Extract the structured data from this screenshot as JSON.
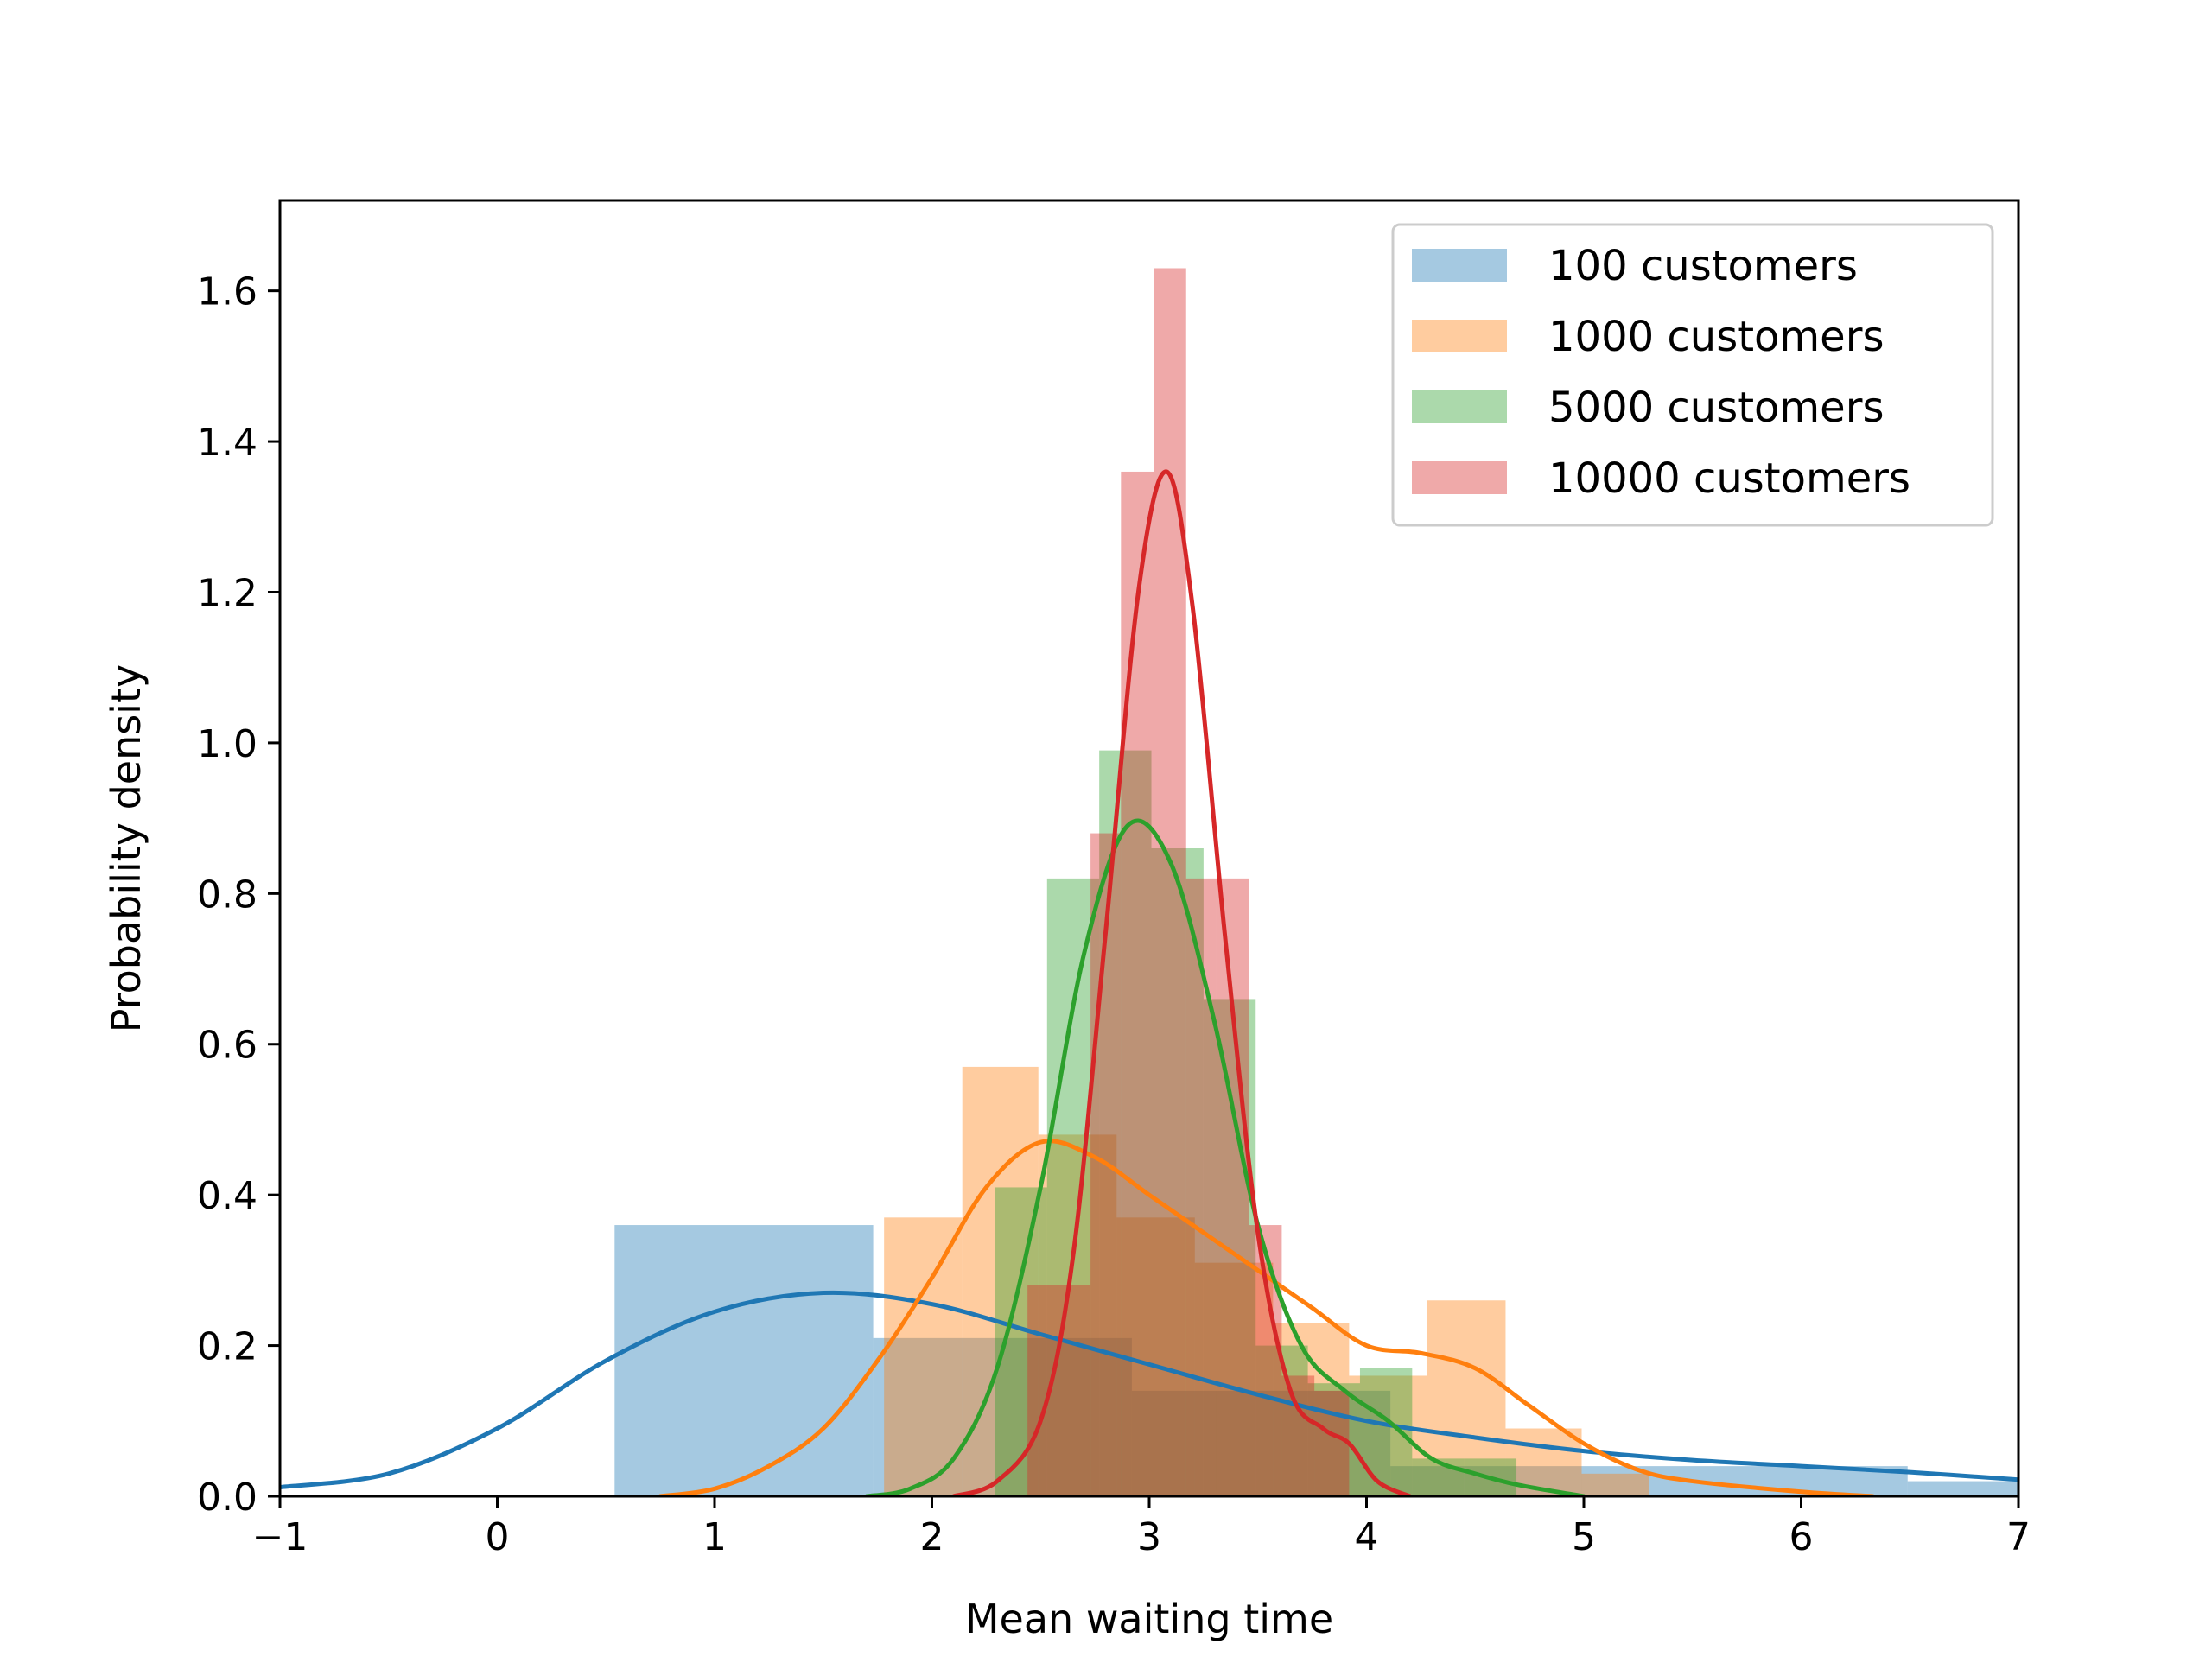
{
  "chart_data": {
    "type": "histogram_kde",
    "title": "",
    "xlabel": "Mean waiting time",
    "ylabel": "Probability density",
    "xlim": [
      -1,
      7
    ],
    "ylim": [
      0,
      1.72
    ],
    "x_ticks": [
      -1,
      0,
      1,
      2,
      3,
      4,
      5,
      6,
      7
    ],
    "y_ticks": [
      0.0,
      0.2,
      0.4,
      0.6,
      0.8,
      1.0,
      1.2,
      1.4,
      1.6
    ],
    "x_tick_labels": [
      "−1",
      "0",
      "1",
      "2",
      "3",
      "4",
      "5",
      "6",
      "7"
    ],
    "y_tick_labels": [
      "0.0",
      "0.2",
      "0.4",
      "0.6",
      "0.8",
      "1.0",
      "1.2",
      "1.4",
      "1.6"
    ],
    "legend_position": "top-right",
    "grid": false,
    "series": [
      {
        "name": "100 customers",
        "color": "#1f77b4",
        "bins": [
          {
            "x0": 0.54,
            "x1": 1.73,
            "h": 0.36
          },
          {
            "x0": 1.73,
            "x1": 2.92,
            "h": 0.21
          },
          {
            "x0": 2.92,
            "x1": 4.11,
            "h": 0.14
          },
          {
            "x0": 4.11,
            "x1": 5.3,
            "h": 0.04
          },
          {
            "x0": 5.3,
            "x1": 6.49,
            "h": 0.04
          },
          {
            "x0": 6.49,
            "x1": 7.68,
            "h": 0.02
          }
        ],
        "kde": [
          [
            -1.0,
            0.012
          ],
          [
            -0.5,
            0.03
          ],
          [
            0.0,
            0.09
          ],
          [
            0.5,
            0.18
          ],
          [
            1.0,
            0.245
          ],
          [
            1.5,
            0.27
          ],
          [
            2.0,
            0.255
          ],
          [
            2.5,
            0.215
          ],
          [
            3.0,
            0.175
          ],
          [
            3.5,
            0.135
          ],
          [
            4.0,
            0.1
          ],
          [
            4.5,
            0.078
          ],
          [
            5.0,
            0.06
          ],
          [
            5.5,
            0.048
          ],
          [
            6.0,
            0.04
          ],
          [
            6.5,
            0.032
          ],
          [
            7.0,
            0.022
          ]
        ]
      },
      {
        "name": "1000 customers",
        "color": "#ff7f0e",
        "bins": [
          {
            "x0": 1.78,
            "x1": 2.14,
            "h": 0.37
          },
          {
            "x0": 2.14,
            "x1": 2.49,
            "h": 0.57
          },
          {
            "x0": 2.49,
            "x1": 2.85,
            "h": 0.48
          },
          {
            "x0": 2.85,
            "x1": 3.21,
            "h": 0.37
          },
          {
            "x0": 3.21,
            "x1": 3.57,
            "h": 0.31
          },
          {
            "x0": 3.57,
            "x1": 3.92,
            "h": 0.23
          },
          {
            "x0": 3.92,
            "x1": 4.28,
            "h": 0.16
          },
          {
            "x0": 4.28,
            "x1": 4.64,
            "h": 0.26
          },
          {
            "x0": 4.64,
            "x1": 4.99,
            "h": 0.09
          },
          {
            "x0": 4.99,
            "x1": 5.3,
            "h": 0.03
          }
        ],
        "kde": [
          [
            0.75,
            0.0
          ],
          [
            1.0,
            0.01
          ],
          [
            1.25,
            0.04
          ],
          [
            1.5,
            0.09
          ],
          [
            1.75,
            0.18
          ],
          [
            2.0,
            0.29
          ],
          [
            2.25,
            0.41
          ],
          [
            2.5,
            0.47
          ],
          [
            2.75,
            0.45
          ],
          [
            3.0,
            0.4
          ],
          [
            3.25,
            0.35
          ],
          [
            3.5,
            0.3
          ],
          [
            3.75,
            0.25
          ],
          [
            4.0,
            0.2
          ],
          [
            4.25,
            0.19
          ],
          [
            4.5,
            0.17
          ],
          [
            4.75,
            0.12
          ],
          [
            5.0,
            0.07
          ],
          [
            5.25,
            0.035
          ],
          [
            5.5,
            0.02
          ],
          [
            6.0,
            0.006
          ],
          [
            6.33,
            0.0
          ]
        ]
      },
      {
        "name": "5000 customers",
        "color": "#2ca02c",
        "bins": [
          {
            "x0": 2.29,
            "x1": 2.53,
            "h": 0.41
          },
          {
            "x0": 2.53,
            "x1": 2.77,
            "h": 0.82
          },
          {
            "x0": 2.77,
            "x1": 3.01,
            "h": 0.99
          },
          {
            "x0": 3.01,
            "x1": 3.25,
            "h": 0.86
          },
          {
            "x0": 3.25,
            "x1": 3.49,
            "h": 0.66
          },
          {
            "x0": 3.49,
            "x1": 3.73,
            "h": 0.2
          },
          {
            "x0": 3.73,
            "x1": 3.97,
            "h": 0.15
          },
          {
            "x0": 3.97,
            "x1": 4.21,
            "h": 0.17
          },
          {
            "x0": 4.21,
            "x1": 4.45,
            "h": 0.05
          },
          {
            "x0": 4.45,
            "x1": 4.69,
            "h": 0.05
          }
        ],
        "kde": [
          [
            1.7,
            0.0
          ],
          [
            1.9,
            0.01
          ],
          [
            2.1,
            0.05
          ],
          [
            2.3,
            0.17
          ],
          [
            2.5,
            0.41
          ],
          [
            2.7,
            0.72
          ],
          [
            2.9,
            0.89
          ],
          [
            3.1,
            0.84
          ],
          [
            3.3,
            0.63
          ],
          [
            3.5,
            0.36
          ],
          [
            3.7,
            0.2
          ],
          [
            3.9,
            0.14
          ],
          [
            4.1,
            0.1
          ],
          [
            4.3,
            0.05
          ],
          [
            4.5,
            0.03
          ],
          [
            4.7,
            0.015
          ],
          [
            5.0,
            0.0
          ]
        ]
      },
      {
        "name": "10000 customers",
        "color": "#d62728",
        "bins": [
          {
            "x0": 2.44,
            "x1": 2.73,
            "h": 0.28
          },
          {
            "x0": 2.73,
            "x1": 2.87,
            "h": 0.88
          },
          {
            "x0": 2.87,
            "x1": 3.02,
            "h": 1.36
          },
          {
            "x0": 3.02,
            "x1": 3.17,
            "h": 1.63
          },
          {
            "x0": 3.17,
            "x1": 3.31,
            "h": 0.82
          },
          {
            "x0": 3.31,
            "x1": 3.46,
            "h": 0.82
          },
          {
            "x0": 3.46,
            "x1": 3.61,
            "h": 0.36
          },
          {
            "x0": 3.61,
            "x1": 3.76,
            "h": 0.16
          },
          {
            "x0": 3.76,
            "x1": 3.92,
            "h": 0.14
          }
        ],
        "kde": [
          [
            2.1,
            0.0
          ],
          [
            2.3,
            0.02
          ],
          [
            2.5,
            0.1
          ],
          [
            2.65,
            0.32
          ],
          [
            2.8,
            0.75
          ],
          [
            2.95,
            1.2
          ],
          [
            3.08,
            1.36
          ],
          [
            3.2,
            1.18
          ],
          [
            3.35,
            0.74
          ],
          [
            3.5,
            0.35
          ],
          [
            3.65,
            0.14
          ],
          [
            3.8,
            0.09
          ],
          [
            3.92,
            0.07
          ],
          [
            4.05,
            0.02
          ],
          [
            4.2,
            0.0
          ]
        ]
      }
    ]
  }
}
